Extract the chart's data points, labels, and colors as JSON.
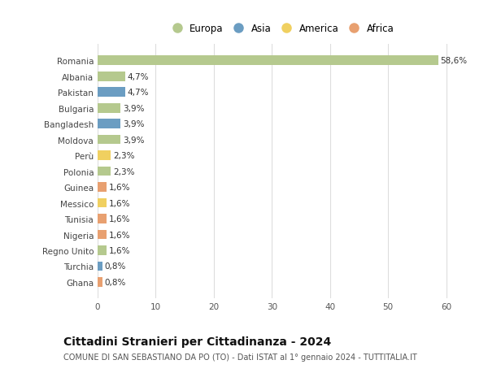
{
  "countries": [
    "Romania",
    "Albania",
    "Pakistan",
    "Bulgaria",
    "Bangladesh",
    "Moldova",
    "Perù",
    "Polonia",
    "Guinea",
    "Messico",
    "Tunisia",
    "Nigeria",
    "Regno Unito",
    "Turchia",
    "Ghana"
  ],
  "values": [
    58.6,
    4.7,
    4.7,
    3.9,
    3.9,
    3.9,
    2.3,
    2.3,
    1.6,
    1.6,
    1.6,
    1.6,
    1.6,
    0.8,
    0.8
  ],
  "labels": [
    "58,6%",
    "4,7%",
    "4,7%",
    "3,9%",
    "3,9%",
    "3,9%",
    "2,3%",
    "2,3%",
    "1,6%",
    "1,6%",
    "1,6%",
    "1,6%",
    "1,6%",
    "0,8%",
    "0,8%"
  ],
  "continents": [
    "Europa",
    "Europa",
    "Asia",
    "Europa",
    "Asia",
    "Europa",
    "America",
    "Europa",
    "Africa",
    "America",
    "Africa",
    "Africa",
    "Europa",
    "Asia",
    "Africa"
  ],
  "colors": {
    "Europa": "#b5c98e",
    "Asia": "#6b9dc2",
    "America": "#f0d060",
    "Africa": "#e8a070"
  },
  "legend_order": [
    "Europa",
    "Asia",
    "America",
    "Africa"
  ],
  "title": "Cittadini Stranieri per Cittadinanza - 2024",
  "subtitle": "COMUNE DI SAN SEBASTIANO DA PO (TO) - Dati ISTAT al 1° gennaio 2024 - TUTTITALIA.IT",
  "xlim": [
    0,
    63
  ],
  "xticks": [
    0,
    10,
    20,
    30,
    40,
    50,
    60
  ],
  "bg_color": "#ffffff",
  "grid_color": "#dddddd",
  "bar_height": 0.6,
  "label_fontsize": 7.5,
  "tick_fontsize": 7.5,
  "title_fontsize": 10,
  "subtitle_fontsize": 7,
  "legend_fontsize": 8.5
}
